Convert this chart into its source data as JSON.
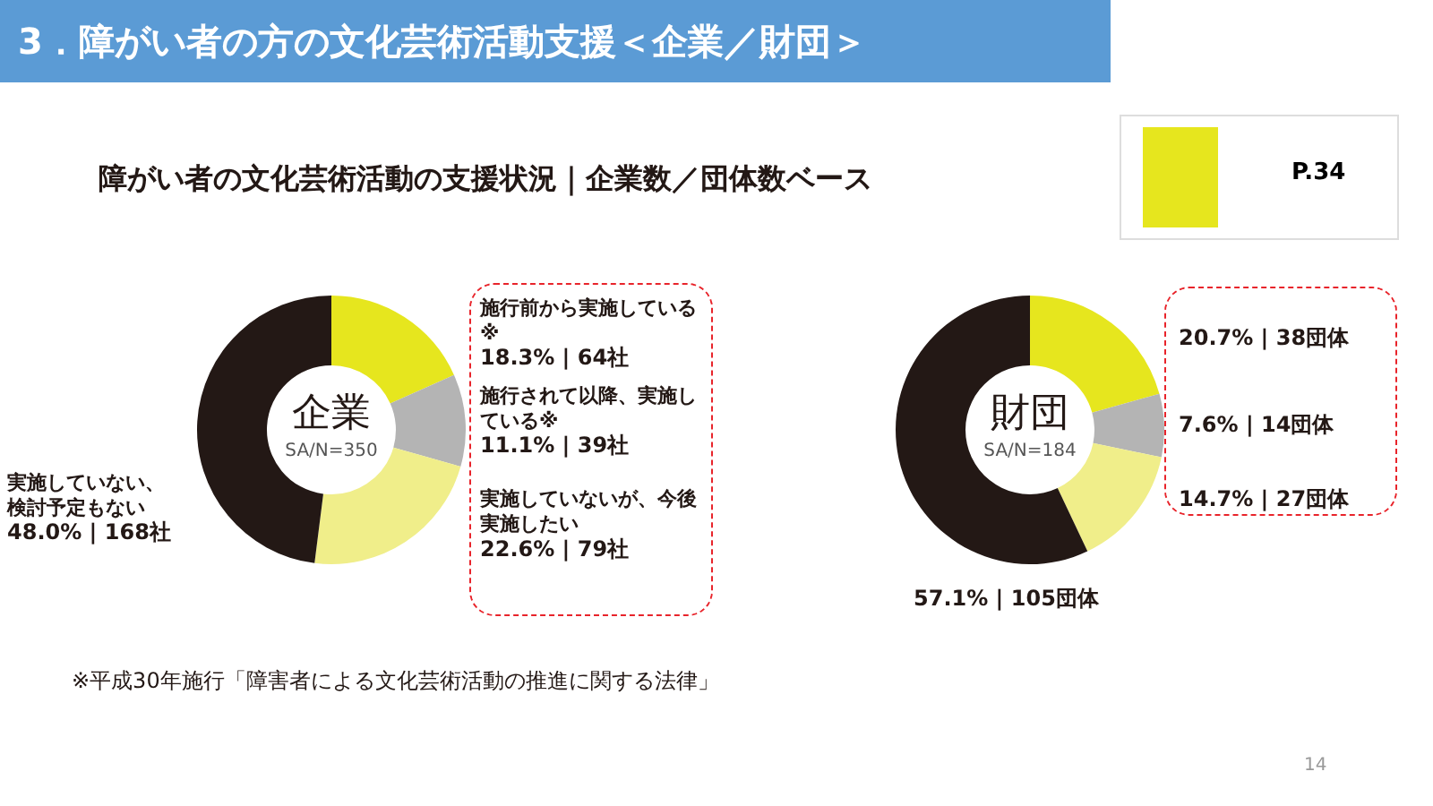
{
  "chart_data": [
    {
      "type": "donut",
      "title": "企業",
      "subtitle": "SA/N=350",
      "categories": [
        "施行前から実施している※",
        "施行されて以降、実施している※",
        "実施していないが、今後実施したい",
        "実施していない、検討予定もない"
      ],
      "values": [
        18.3,
        11.1,
        22.6,
        48.0
      ],
      "value_labels": [
        "18.3% | 64社",
        "11.1% | 39社",
        "22.6% | 79社",
        "48.0% | 168社"
      ],
      "colors": [
        "#e6e61e",
        "#b4b4b4",
        "#f0ee8a",
        "#231815"
      ],
      "legend": false,
      "annotations": [
        "3．障がい者の方の文化芸術活動支援＜企業／財団＞",
        "障がい者の文化芸術活動の支援状況｜企業数／団体数ベース",
        "P.34",
        "※平成30年施行「障害者による文化芸術活動の推進に関する法律」",
        "14"
      ]
    },
    {
      "type": "donut",
      "title": "財団",
      "subtitle": "SA/N=184",
      "categories": [
        null,
        null,
        null,
        null
      ],
      "values": [
        20.7,
        7.6,
        14.7,
        57.1
      ],
      "value_labels": [
        "20.7% | 38団体",
        "7.6% | 14団体",
        "14.7% | 27団体",
        "57.1% | 105団体"
      ],
      "colors": [
        "#e6e61e",
        "#b4b4b4",
        "#f0ee8a",
        "#231815"
      ],
      "legend": false
    }
  ]
}
